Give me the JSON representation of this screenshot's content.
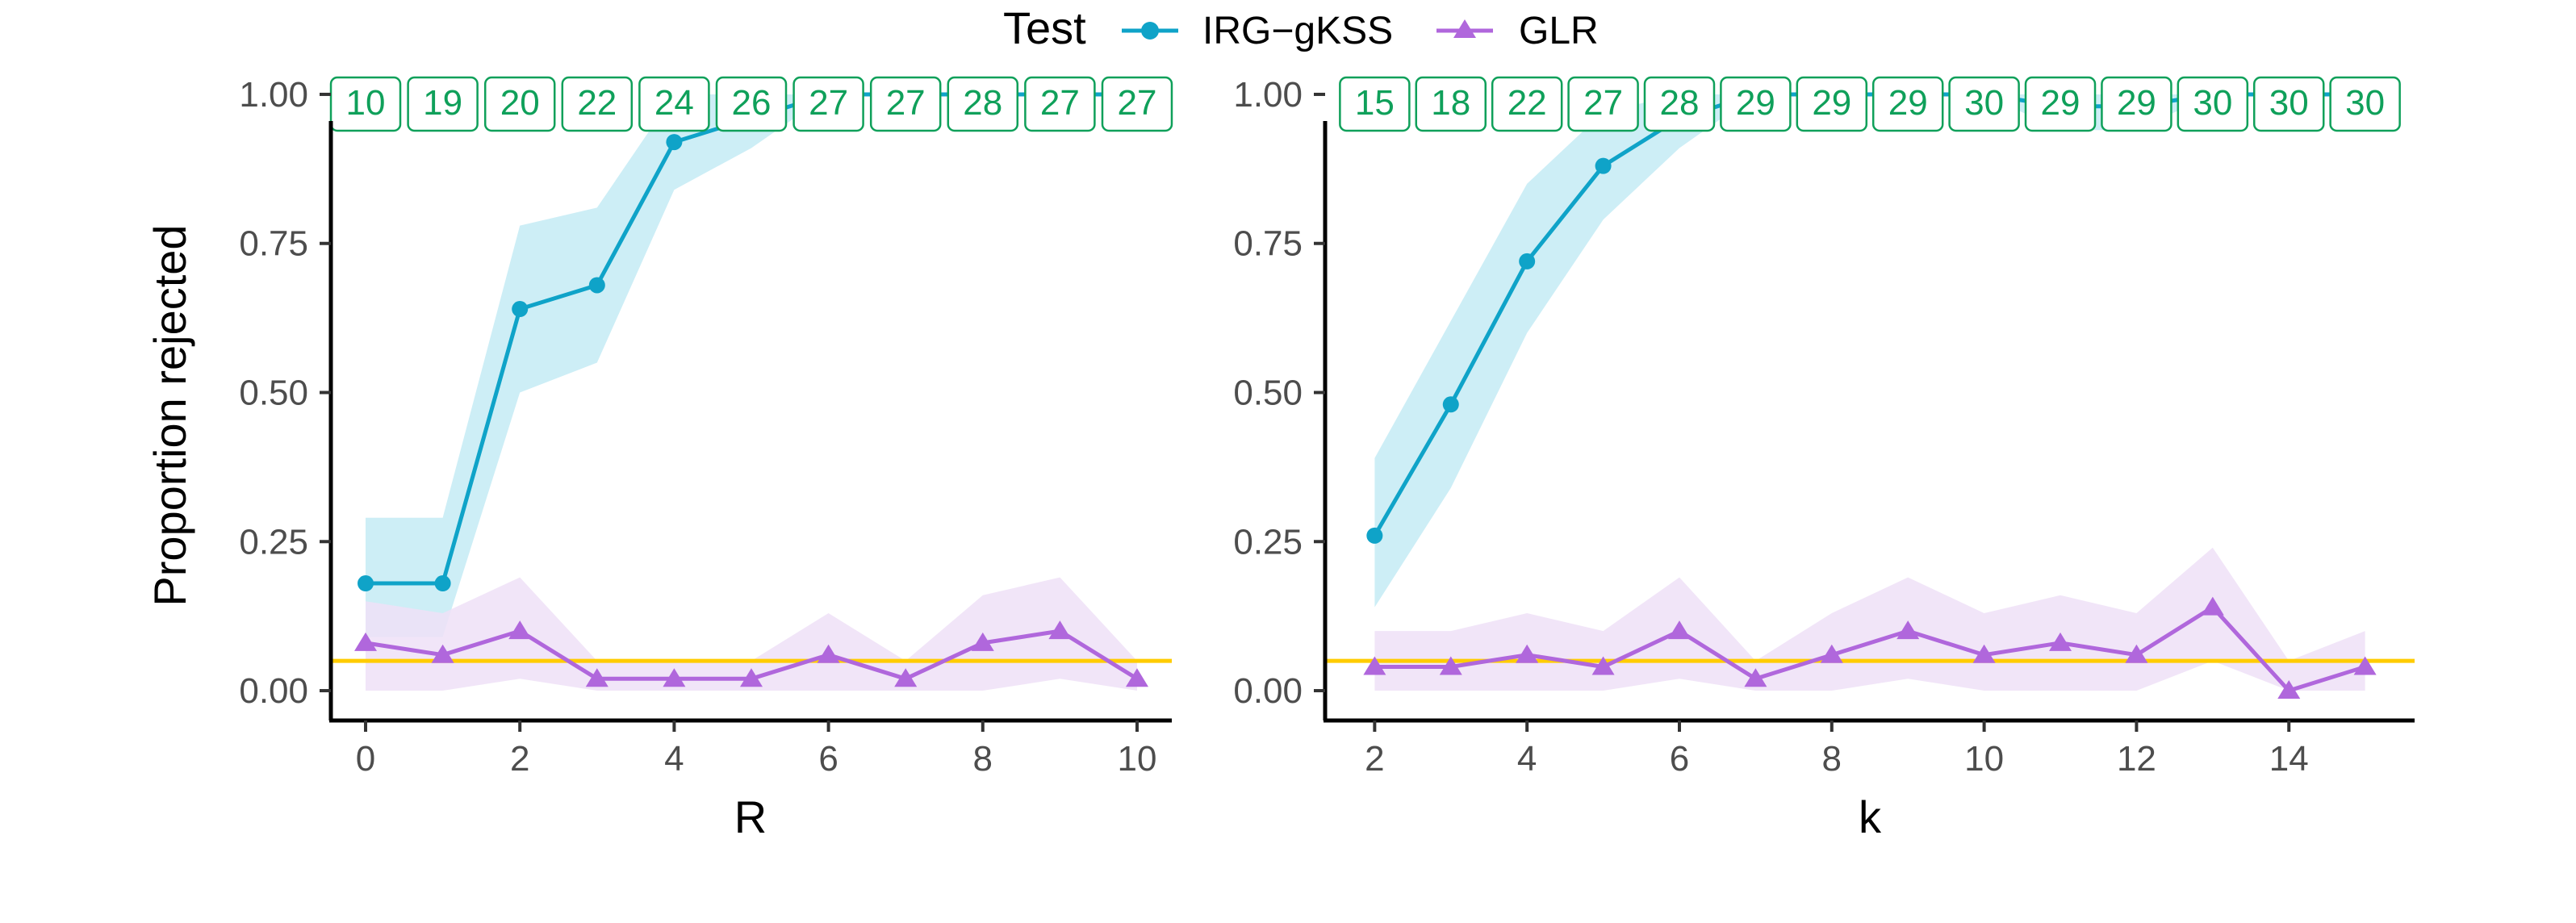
{
  "legend": {
    "title": "Test",
    "items": [
      {
        "label": "IRG−gKSS",
        "color": "#0fa3c8",
        "shape": "circle"
      },
      {
        "label": "GLR",
        "color": "#b067dc",
        "shape": "triangle"
      }
    ]
  },
  "colors": {
    "irg_line": "#0fa3c8",
    "irg_band": "#cdeef6",
    "glr_line": "#b067dc",
    "glr_band": "#eee0f7",
    "reference": "#ffcc00",
    "count_box": "#0fa05a"
  },
  "chart_data": [
    {
      "type": "line",
      "xlabel": "R",
      "ylabel": "Proportion rejected",
      "xlim": [
        -0.45,
        10.45
      ],
      "ylim": [
        -0.05,
        1.05
      ],
      "xticks": [
        "0",
        "2",
        "4",
        "6",
        "8",
        "10"
      ],
      "xtick_values": [
        0,
        2,
        4,
        6,
        8,
        10
      ],
      "yticks": [
        "0.00",
        "0.25",
        "0.50",
        "0.75",
        "1.00"
      ],
      "ytick_values": [
        0,
        0.25,
        0.5,
        0.75,
        1
      ],
      "reference_line": 0.05,
      "x": [
        0,
        1,
        2,
        3,
        4,
        5,
        6,
        7,
        8,
        9,
        10
      ],
      "top_counts": [
        10,
        19,
        20,
        22,
        24,
        26,
        27,
        27,
        28,
        27,
        27
      ],
      "series": [
        {
          "name": "IRG−gKSS",
          "values": [
            0.18,
            0.18,
            0.64,
            0.68,
            0.92,
            0.96,
            1.0,
            1.0,
            1.0,
            1.0,
            1.0
          ],
          "lower": [
            0.09,
            0.09,
            0.5,
            0.55,
            0.84,
            0.91,
            1.0,
            1.0,
            1.0,
            1.0,
            1.0
          ],
          "upper": [
            0.29,
            0.29,
            0.78,
            0.81,
            1.0,
            1.0,
            1.0,
            1.0,
            1.0,
            1.0,
            1.0
          ]
        },
        {
          "name": "GLR",
          "values": [
            0.08,
            0.06,
            0.1,
            0.02,
            0.02,
            0.02,
            0.06,
            0.02,
            0.08,
            0.1,
            0.02
          ],
          "lower": [
            0.0,
            0.0,
            0.02,
            0.0,
            0.0,
            0.0,
            0.0,
            0.0,
            0.0,
            0.02,
            0.0
          ],
          "upper": [
            0.15,
            0.13,
            0.19,
            0.05,
            0.05,
            0.05,
            0.13,
            0.05,
            0.16,
            0.19,
            0.05
          ]
        }
      ]
    },
    {
      "type": "line",
      "xlabel": "k",
      "ylabel": "",
      "xlim": [
        1.35,
        15.65
      ],
      "ylim": [
        -0.05,
        1.05
      ],
      "xticks": [
        "2",
        "4",
        "6",
        "8",
        "10",
        "12",
        "14"
      ],
      "xtick_values": [
        2,
        4,
        6,
        8,
        10,
        12,
        14
      ],
      "yticks": [
        "0.00",
        "0.25",
        "0.50",
        "0.75",
        "1.00"
      ],
      "ytick_values": [
        0,
        0.25,
        0.5,
        0.75,
        1
      ],
      "reference_line": 0.05,
      "x": [
        2,
        3,
        4,
        5,
        6,
        7,
        8,
        9,
        10,
        11,
        12,
        13,
        14,
        15
      ],
      "top_counts": [
        15,
        18,
        22,
        27,
        28,
        29,
        29,
        29,
        30,
        29,
        29,
        30,
        30,
        30
      ],
      "series": [
        {
          "name": "IRG−gKSS",
          "values": [
            0.26,
            0.48,
            0.72,
            0.88,
            0.96,
            1.0,
            1.0,
            1.0,
            1.0,
            0.98,
            0.98,
            1.0,
            1.0,
            1.0
          ],
          "lower": [
            0.14,
            0.34,
            0.6,
            0.79,
            0.91,
            1.0,
            1.0,
            1.0,
            1.0,
            0.94,
            0.94,
            1.0,
            1.0,
            1.0
          ],
          "upper": [
            0.39,
            0.62,
            0.85,
            0.97,
            1.0,
            1.0,
            1.0,
            1.0,
            1.0,
            1.0,
            1.0,
            1.0,
            1.0,
            1.0
          ]
        },
        {
          "name": "GLR",
          "values": [
            0.04,
            0.04,
            0.06,
            0.04,
            0.1,
            0.02,
            0.06,
            0.1,
            0.06,
            0.08,
            0.06,
            0.14,
            0.0,
            0.04
          ],
          "lower": [
            0.0,
            0.0,
            0.0,
            0.0,
            0.02,
            0.0,
            0.0,
            0.02,
            0.0,
            0.0,
            0.0,
            0.05,
            0.0,
            0.0
          ],
          "upper": [
            0.1,
            0.1,
            0.13,
            0.1,
            0.19,
            0.05,
            0.13,
            0.19,
            0.13,
            0.16,
            0.13,
            0.24,
            0.05,
            0.1
          ]
        }
      ]
    }
  ]
}
